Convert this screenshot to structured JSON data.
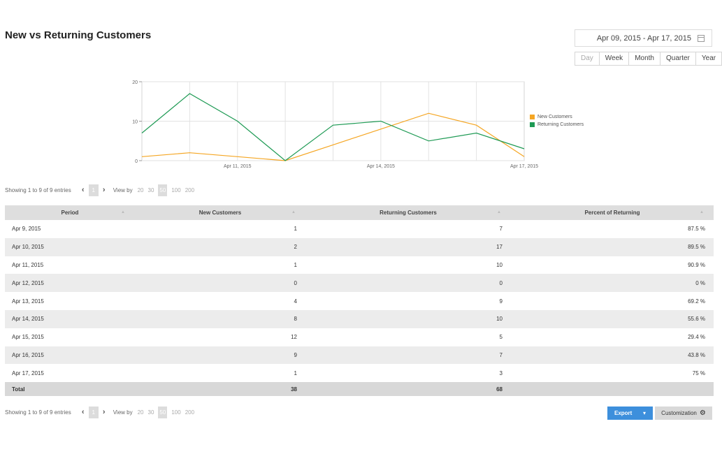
{
  "page": {
    "title": "New vs Returning Customers"
  },
  "date_range": {
    "value": "Apr 09, 2015 - Apr 17, 2015"
  },
  "period_buttons": [
    "Day",
    "Week",
    "Month",
    "Quarter",
    "Year"
  ],
  "chart_data": {
    "type": "line",
    "x": [
      "Apr 9, 2015",
      "Apr 10, 2015",
      "Apr 11, 2015",
      "Apr 12, 2015",
      "Apr 13, 2015",
      "Apr 14, 2015",
      "Apr 15, 2015",
      "Apr 16, 2015",
      "Apr 17, 2015"
    ],
    "x_tick_labels": [
      "Apr 11, 2015",
      "Apr 14, 2015",
      "Apr 17, 2015"
    ],
    "y_ticks": [
      "0",
      "10",
      "20"
    ],
    "ylim": [
      0,
      20
    ],
    "grid": true,
    "legend_position": "right",
    "series": [
      {
        "name": "New Customers",
        "color": "#f5a623",
        "values": [
          1,
          2,
          1,
          0,
          4,
          8,
          12,
          9,
          1
        ]
      },
      {
        "name": "Returning Customers",
        "color": "#1e9a54",
        "values": [
          7,
          17,
          10,
          0,
          9,
          10,
          5,
          7,
          3
        ]
      }
    ]
  },
  "pager": {
    "showing": "Showing 1 to 9 of 9 entries",
    "page": "1",
    "view_by_label": "View by",
    "view_options": [
      "20",
      "30",
      "50",
      "100",
      "200"
    ],
    "selected_view": "50"
  },
  "table": {
    "columns": [
      "Period",
      "New Customers",
      "Returning Customers",
      "Percent of Returning"
    ],
    "rows": [
      [
        "Apr 9, 2015",
        "1",
        "7",
        "87.5 %"
      ],
      [
        "Apr 10, 2015",
        "2",
        "17",
        "89.5 %"
      ],
      [
        "Apr 11, 2015",
        "1",
        "10",
        "90.9 %"
      ],
      [
        "Apr 12, 2015",
        "0",
        "0",
        "0 %"
      ],
      [
        "Apr 13, 2015",
        "4",
        "9",
        "69.2 %"
      ],
      [
        "Apr 14, 2015",
        "8",
        "10",
        "55.6 %"
      ],
      [
        "Apr 15, 2015",
        "12",
        "5",
        "29.4 %"
      ],
      [
        "Apr 16, 2015",
        "9",
        "7",
        "43.8 %"
      ],
      [
        "Apr 17, 2015",
        "1",
        "3",
        "75 %"
      ]
    ],
    "total": [
      "Total",
      "38",
      "68",
      ""
    ]
  },
  "actions": {
    "export_label": "Export",
    "customization_label": "Customization"
  }
}
